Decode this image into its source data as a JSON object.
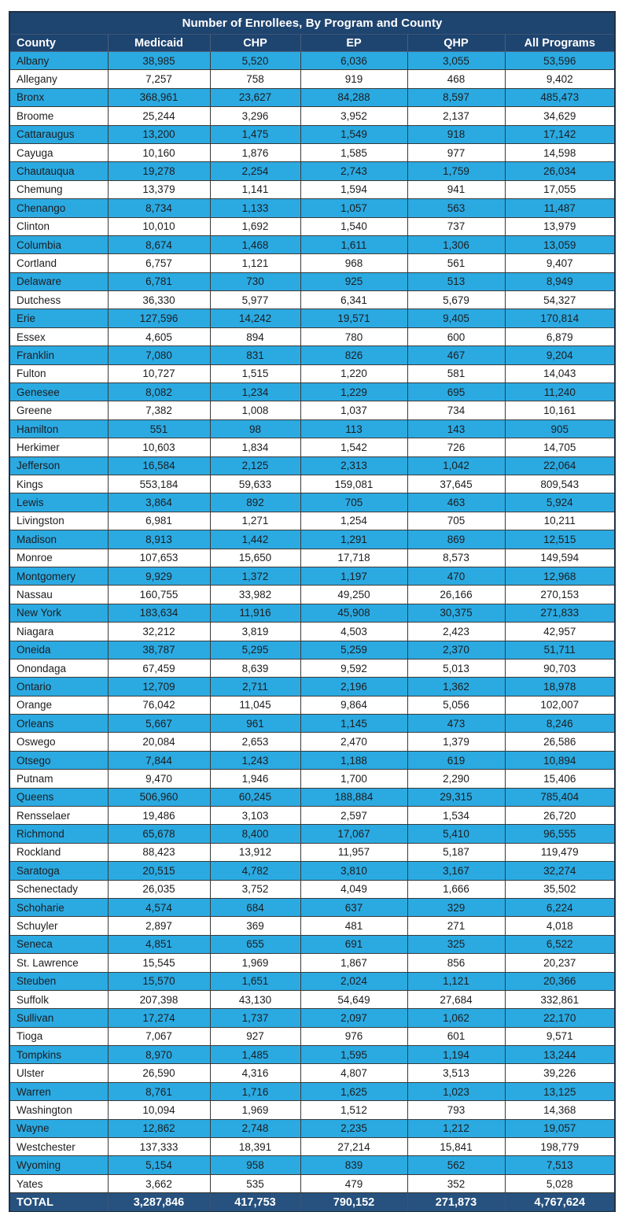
{
  "table": {
    "title": "Number of Enrollees, By Program and County",
    "columns": [
      "County",
      "Medicaid",
      "CHP",
      "EP",
      "QHP",
      "All Programs"
    ],
    "rows": [
      [
        "Albany",
        "38,985",
        "5,520",
        "6,036",
        "3,055",
        "53,596"
      ],
      [
        "Allegany",
        "7,257",
        "758",
        "919",
        "468",
        "9,402"
      ],
      [
        "Bronx",
        "368,961",
        "23,627",
        "84,288",
        "8,597",
        "485,473"
      ],
      [
        "Broome",
        "25,244",
        "3,296",
        "3,952",
        "2,137",
        "34,629"
      ],
      [
        "Cattaraugus",
        "13,200",
        "1,475",
        "1,549",
        "918",
        "17,142"
      ],
      [
        "Cayuga",
        "10,160",
        "1,876",
        "1,585",
        "977",
        "14,598"
      ],
      [
        "Chautauqua",
        "19,278",
        "2,254",
        "2,743",
        "1,759",
        "26,034"
      ],
      [
        "Chemung",
        "13,379",
        "1,141",
        "1,594",
        "941",
        "17,055"
      ],
      [
        "Chenango",
        "8,734",
        "1,133",
        "1,057",
        "563",
        "11,487"
      ],
      [
        "Clinton",
        "10,010",
        "1,692",
        "1,540",
        "737",
        "13,979"
      ],
      [
        "Columbia",
        "8,674",
        "1,468",
        "1,611",
        "1,306",
        "13,059"
      ],
      [
        "Cortland",
        "6,757",
        "1,121",
        "968",
        "561",
        "9,407"
      ],
      [
        "Delaware",
        "6,781",
        "730",
        "925",
        "513",
        "8,949"
      ],
      [
        "Dutchess",
        "36,330",
        "5,977",
        "6,341",
        "5,679",
        "54,327"
      ],
      [
        "Erie",
        "127,596",
        "14,242",
        "19,571",
        "9,405",
        "170,814"
      ],
      [
        "Essex",
        "4,605",
        "894",
        "780",
        "600",
        "6,879"
      ],
      [
        "Franklin",
        "7,080",
        "831",
        "826",
        "467",
        "9,204"
      ],
      [
        "Fulton",
        "10,727",
        "1,515",
        "1,220",
        "581",
        "14,043"
      ],
      [
        "Genesee",
        "8,082",
        "1,234",
        "1,229",
        "695",
        "11,240"
      ],
      [
        "Greene",
        "7,382",
        "1,008",
        "1,037",
        "734",
        "10,161"
      ],
      [
        "Hamilton",
        "551",
        "98",
        "113",
        "143",
        "905"
      ],
      [
        "Herkimer",
        "10,603",
        "1,834",
        "1,542",
        "726",
        "14,705"
      ],
      [
        "Jefferson",
        "16,584",
        "2,125",
        "2,313",
        "1,042",
        "22,064"
      ],
      [
        "Kings",
        "553,184",
        "59,633",
        "159,081",
        "37,645",
        "809,543"
      ],
      [
        "Lewis",
        "3,864",
        "892",
        "705",
        "463",
        "5,924"
      ],
      [
        "Livingston",
        "6,981",
        "1,271",
        "1,254",
        "705",
        "10,211"
      ],
      [
        "Madison",
        "8,913",
        "1,442",
        "1,291",
        "869",
        "12,515"
      ],
      [
        "Monroe",
        "107,653",
        "15,650",
        "17,718",
        "8,573",
        "149,594"
      ],
      [
        "Montgomery",
        "9,929",
        "1,372",
        "1,197",
        "470",
        "12,968"
      ],
      [
        "Nassau",
        "160,755",
        "33,982",
        "49,250",
        "26,166",
        "270,153"
      ],
      [
        "New York",
        "183,634",
        "11,916",
        "45,908",
        "30,375",
        "271,833"
      ],
      [
        "Niagara",
        "32,212",
        "3,819",
        "4,503",
        "2,423",
        "42,957"
      ],
      [
        "Oneida",
        "38,787",
        "5,295",
        "5,259",
        "2,370",
        "51,711"
      ],
      [
        "Onondaga",
        "67,459",
        "8,639",
        "9,592",
        "5,013",
        "90,703"
      ],
      [
        "Ontario",
        "12,709",
        "2,711",
        "2,196",
        "1,362",
        "18,978"
      ],
      [
        "Orange",
        "76,042",
        "11,045",
        "9,864",
        "5,056",
        "102,007"
      ],
      [
        "Orleans",
        "5,667",
        "961",
        "1,145",
        "473",
        "8,246"
      ],
      [
        "Oswego",
        "20,084",
        "2,653",
        "2,470",
        "1,379",
        "26,586"
      ],
      [
        "Otsego",
        "7,844",
        "1,243",
        "1,188",
        "619",
        "10,894"
      ],
      [
        "Putnam",
        "9,470",
        "1,946",
        "1,700",
        "2,290",
        "15,406"
      ],
      [
        "Queens",
        "506,960",
        "60,245",
        "188,884",
        "29,315",
        "785,404"
      ],
      [
        "Rensselaer",
        "19,486",
        "3,103",
        "2,597",
        "1,534",
        "26,720"
      ],
      [
        "Richmond",
        "65,678",
        "8,400",
        "17,067",
        "5,410",
        "96,555"
      ],
      [
        "Rockland",
        "88,423",
        "13,912",
        "11,957",
        "5,187",
        "119,479"
      ],
      [
        "Saratoga",
        "20,515",
        "4,782",
        "3,810",
        "3,167",
        "32,274"
      ],
      [
        "Schenectady",
        "26,035",
        "3,752",
        "4,049",
        "1,666",
        "35,502"
      ],
      [
        "Schoharie",
        "4,574",
        "684",
        "637",
        "329",
        "6,224"
      ],
      [
        "Schuyler",
        "2,897",
        "369",
        "481",
        "271",
        "4,018"
      ],
      [
        "Seneca",
        "4,851",
        "655",
        "691",
        "325",
        "6,522"
      ],
      [
        "St. Lawrence",
        "15,545",
        "1,969",
        "1,867",
        "856",
        "20,237"
      ],
      [
        "Steuben",
        "15,570",
        "1,651",
        "2,024",
        "1,121",
        "20,366"
      ],
      [
        "Suffolk",
        "207,398",
        "43,130",
        "54,649",
        "27,684",
        "332,861"
      ],
      [
        "Sullivan",
        "17,274",
        "1,737",
        "2,097",
        "1,062",
        "22,170"
      ],
      [
        "Tioga",
        "7,067",
        "927",
        "976",
        "601",
        "9,571"
      ],
      [
        "Tompkins",
        "8,970",
        "1,485",
        "1,595",
        "1,194",
        "13,244"
      ],
      [
        "Ulster",
        "26,590",
        "4,316",
        "4,807",
        "3,513",
        "39,226"
      ],
      [
        "Warren",
        "8,761",
        "1,716",
        "1,625",
        "1,023",
        "13,125"
      ],
      [
        "Washington",
        "10,094",
        "1,969",
        "1,512",
        "793",
        "14,368"
      ],
      [
        "Wayne",
        "12,862",
        "2,748",
        "2,235",
        "1,212",
        "19,057"
      ],
      [
        "Westchester",
        "137,333",
        "18,391",
        "27,214",
        "15,841",
        "198,779"
      ],
      [
        "Wyoming",
        "5,154",
        "958",
        "839",
        "562",
        "7,513"
      ],
      [
        "Yates",
        "3,662",
        "535",
        "479",
        "352",
        "5,028"
      ]
    ],
    "total_label": "TOTAL",
    "totals": [
      "3,287,846",
      "417,753",
      "790,152",
      "271,873",
      "4,767,624"
    ],
    "colors": {
      "header_bg": "#1E4470",
      "total_bg": "#27517E",
      "row_alt_bg": "#2BAAE2",
      "row_bg": "#FFFFFF",
      "header_text": "#FFFFFF",
      "body_text": "#1D1D1F"
    }
  }
}
